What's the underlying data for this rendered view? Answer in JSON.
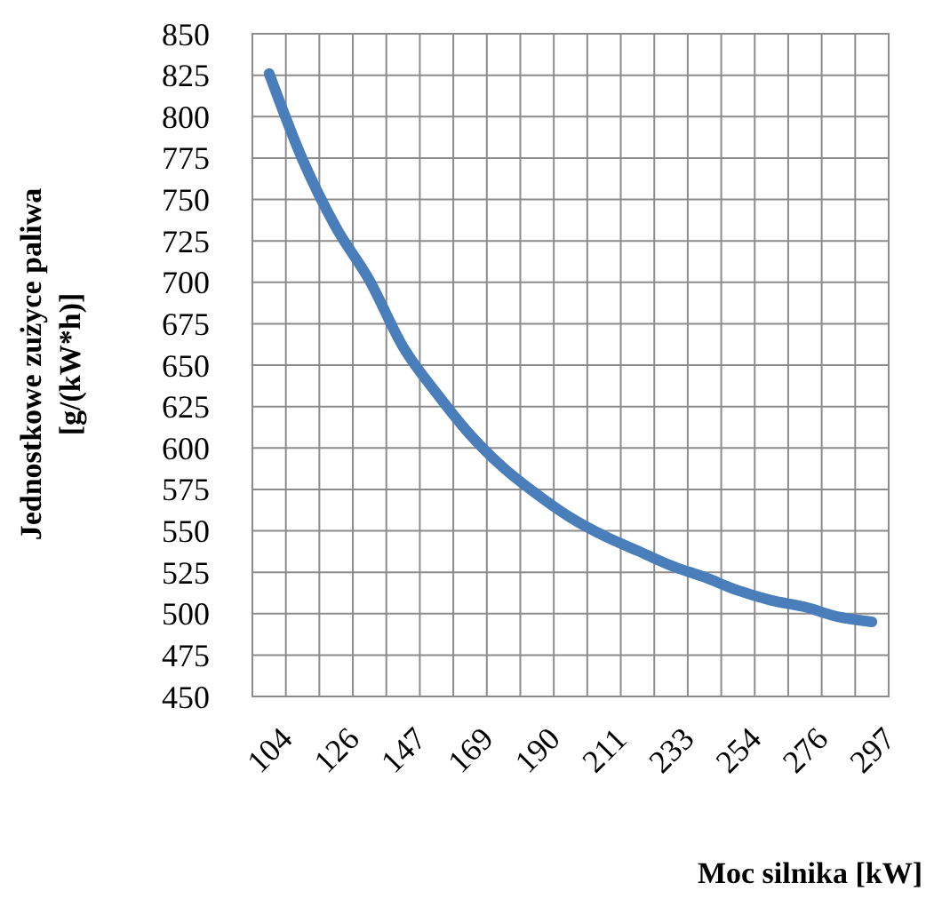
{
  "chart_data": {
    "type": "line",
    "xlabel": "Moc silnika [kW]",
    "ylabel": "Jednostkowe zużyce paliwa\n[g/(kW*h)]",
    "categories": [
      "104",
      null,
      "126",
      null,
      "147",
      null,
      "169",
      null,
      "190",
      null,
      "211",
      null,
      "233",
      null,
      "254",
      null,
      "276",
      null,
      "297"
    ],
    "series": [
      {
        "color": "#4a7ebb",
        "values": [
          826,
          774,
          733,
          701,
          661,
          633,
          608,
          588,
          572,
          558,
          547,
          538,
          529,
          522,
          514,
          508,
          504,
          498,
          495
        ]
      }
    ],
    "ylim": [
      450,
      850
    ],
    "yticks": [
      450,
      475,
      500,
      525,
      550,
      575,
      600,
      625,
      650,
      675,
      700,
      725,
      750,
      775,
      800,
      825,
      850
    ],
    "grid": true,
    "marker": "none",
    "line_style": "solid"
  }
}
